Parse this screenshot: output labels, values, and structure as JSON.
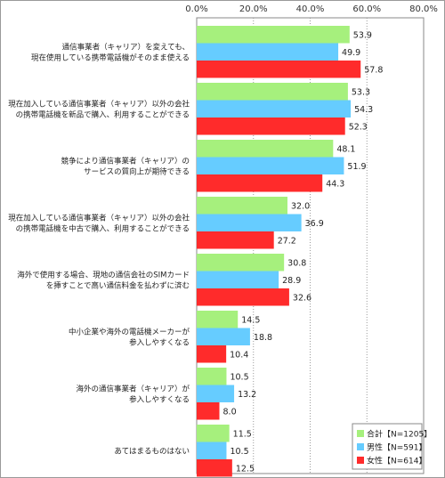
{
  "chart_data": {
    "type": "bar",
    "orientation": "horizontal",
    "title": "",
    "xlabel": "",
    "ylabel": "",
    "xlim": [
      0,
      80
    ],
    "tick_labels": [
      "0.0%",
      "20.0%",
      "40.0%",
      "60.0%",
      "80.0%"
    ],
    "grid": true,
    "legend_position": "bottom-right",
    "categories": [
      [
        "通信事業者（キャリア）を変えても、",
        "現在使用している携帯電話機がそのまま使える"
      ],
      [
        "現在加入している通信事業者（キャリア）以外の会社",
        "の携帯電話機を新品で購入、利用することができる"
      ],
      [
        "競争により通信事業者（キャリア）の",
        "サービスの質向上が期待できる"
      ],
      [
        "現在加入している通信事業者（キャリア）以外の会社",
        "の携帯電話機を中古で購入、利用することができる"
      ],
      [
        "海外で使用する場合、現地の通信会社のSIMカード",
        "を挿すことで高い通信料金を払わずに済む"
      ],
      [
        "中小企業や海外の電話機メーカーが",
        "参入しやすくなる"
      ],
      [
        "海外の通信事業者（キャリア）が",
        "参入しやすくなる"
      ],
      [
        "あてはまるものはない"
      ]
    ],
    "series": [
      {
        "name": "合計【N=1205】",
        "color": "#a6f07d",
        "values": [
          53.9,
          53.3,
          48.1,
          32.0,
          30.8,
          14.5,
          10.5,
          11.5
        ]
      },
      {
        "name": "男性【N=591】",
        "color": "#66ccff",
        "values": [
          49.9,
          54.3,
          51.9,
          36.9,
          28.9,
          18.8,
          13.2,
          10.5
        ]
      },
      {
        "name": "女性【N=614】",
        "color": "#ff2b2b",
        "values": [
          57.8,
          52.3,
          44.3,
          27.2,
          32.6,
          10.4,
          8.0,
          12.5
        ]
      }
    ]
  }
}
